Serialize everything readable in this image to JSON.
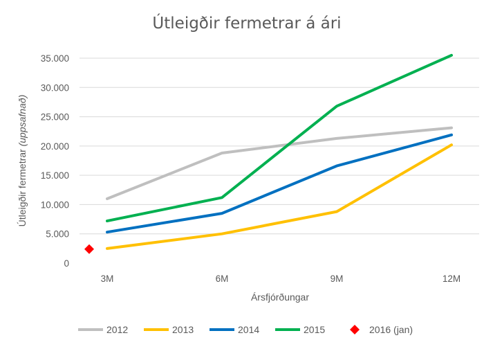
{
  "chart_data": {
    "type": "line",
    "title": "Útleigðir fermetrar á ári",
    "xlabel": "Ársfjórðungar",
    "ylabel_main": "Útleigðir fermetrar ",
    "ylabel_italic": "(uppsafnað)",
    "categories": [
      "3M",
      "6M",
      "9M",
      "12M"
    ],
    "ylim": [
      0,
      35000
    ],
    "yticks": [
      0,
      5000,
      10000,
      15000,
      20000,
      25000,
      30000,
      35000
    ],
    "ytick_labels": [
      "0",
      "5.000",
      "10.000",
      "15.000",
      "20.000",
      "25.000",
      "30.000",
      "35.000"
    ],
    "grid": true,
    "legend_position": "bottom",
    "series": [
      {
        "name": "2012",
        "color": "#BFBFBF",
        "values": [
          11000,
          18800,
          21300,
          23100
        ]
      },
      {
        "name": "2013",
        "color": "#FFC000",
        "values": [
          2500,
          5000,
          8800,
          20200
        ]
      },
      {
        "name": "2014",
        "color": "#0070C0",
        "values": [
          5300,
          8500,
          16600,
          21900
        ]
      },
      {
        "name": "2015",
        "color": "#00B050",
        "values": [
          7200,
          11200,
          26800,
          35500
        ]
      }
    ],
    "markers": [
      {
        "name": "2016 (jan)",
        "color": "#FF0000",
        "shape": "diamond",
        "value": 2400,
        "position": "before-3M"
      }
    ]
  }
}
